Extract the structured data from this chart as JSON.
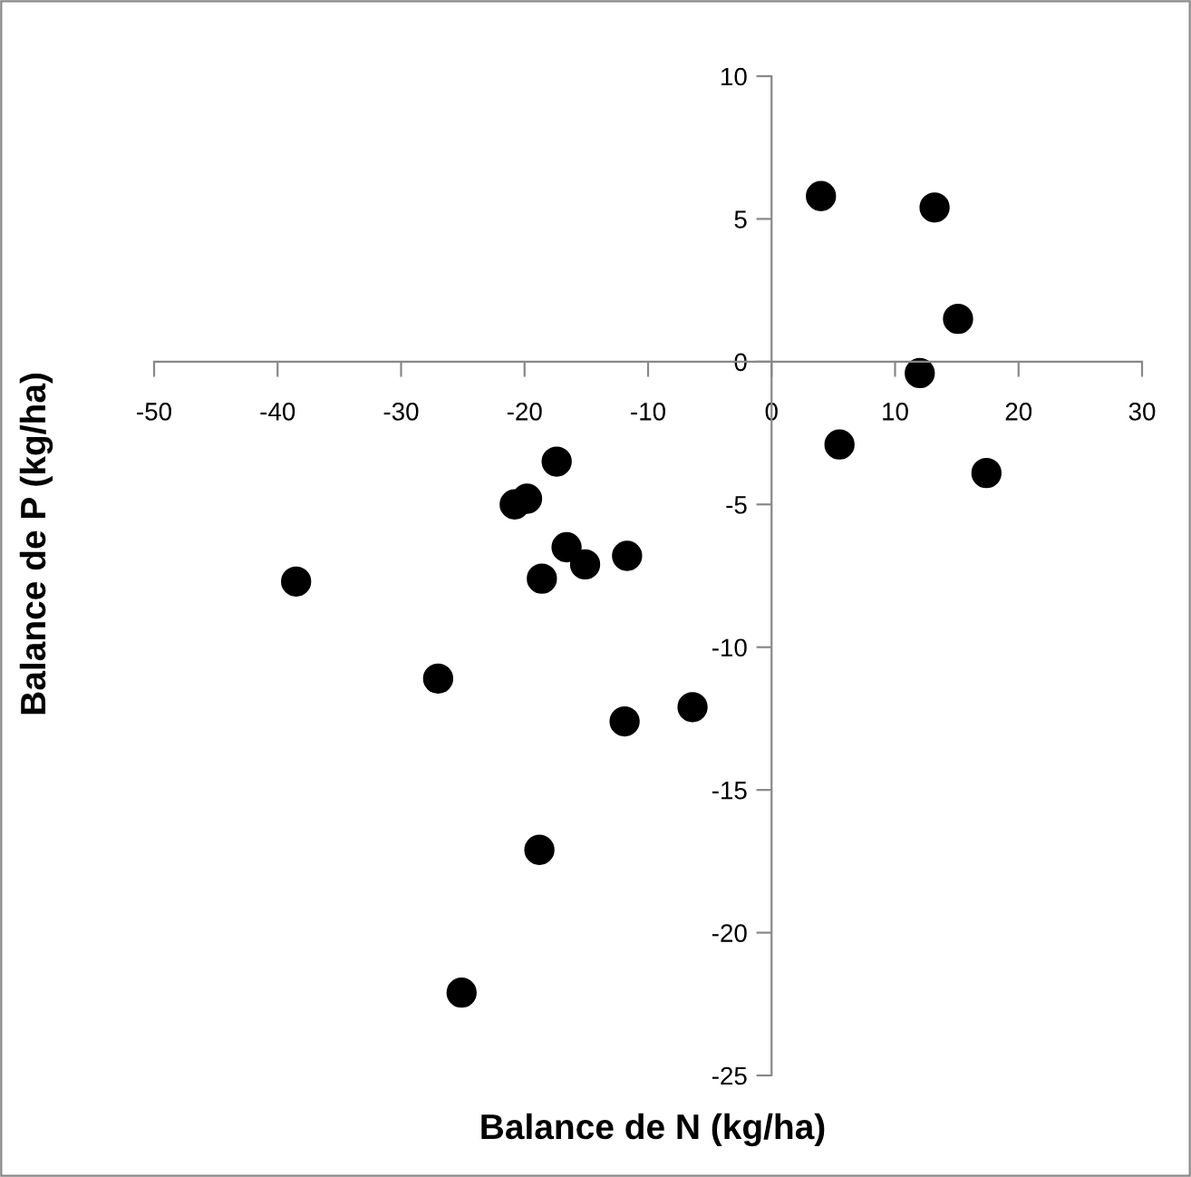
{
  "chart_data": {
    "type": "scatter",
    "xlabel": "Balance de N (kg/ha)",
    "ylabel": "Balance de P (kg/ha)",
    "x": [
      4.0,
      13.2,
      15.1,
      12.0,
      5.5,
      17.4,
      -17.4,
      -19.8,
      -20.8,
      -16.6,
      -15.1,
      -11.7,
      -38.5,
      -18.6,
      -27.0,
      -11.9,
      -6.4,
      -18.8,
      -25.1
    ],
    "series": [
      {
        "color": "#000000",
        "values": [
          5.8,
          5.4,
          1.5,
          -0.4,
          -2.9,
          -3.9,
          -3.5,
          -4.8,
          -5.0,
          -6.5,
          -7.1,
          -6.8,
          -7.7,
          -7.6,
          -11.1,
          -12.6,
          -12.1,
          -17.1,
          -22.1
        ]
      }
    ],
    "xlim": [
      -50,
      30
    ],
    "ylim": [
      -25,
      10
    ],
    "xticks": [
      -50,
      -40,
      -30,
      -20,
      -10,
      0,
      10,
      20,
      30
    ],
    "yticks": [
      -25,
      -20,
      -15,
      -10,
      -5,
      0,
      5,
      10
    ],
    "grid": false,
    "legend": false,
    "marker": "circle"
  }
}
